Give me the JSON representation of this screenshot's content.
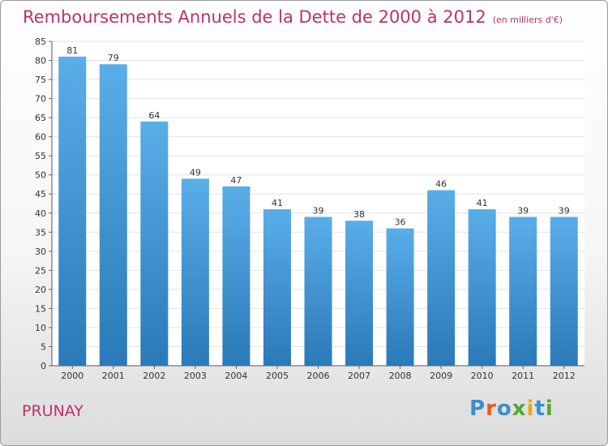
{
  "chart_data": {
    "type": "bar",
    "title": "Remboursements Annuels de la Dette de 2000 à 2012",
    "subtitle": "(en milliers d'€)",
    "categories": [
      "2000",
      "2001",
      "2002",
      "2003",
      "2004",
      "2005",
      "2006",
      "2007",
      "2008",
      "2009",
      "2010",
      "2011",
      "2012"
    ],
    "values": [
      81,
      79,
      64,
      49,
      47,
      41,
      39,
      38,
      36,
      46,
      41,
      39,
      39
    ],
    "ylim": [
      0,
      85
    ],
    "yticks": [
      0,
      5,
      10,
      15,
      20,
      25,
      30,
      35,
      40,
      45,
      50,
      55,
      60,
      65,
      70,
      75,
      80,
      85
    ],
    "grid": true,
    "bar_color_top": "#5aaee8",
    "bar_color_bottom": "#2a79b8"
  },
  "footer": {
    "place": "PRUNAY",
    "logo": [
      "P",
      "r",
      "o",
      "x",
      "i",
      "t",
      "i"
    ],
    "logo_colors": [
      "#3a8fd0",
      "#e85c1a",
      "#3a8fd0",
      "#55a832",
      "#e8a81a",
      "#3a8fd0",
      "#55a832"
    ]
  }
}
